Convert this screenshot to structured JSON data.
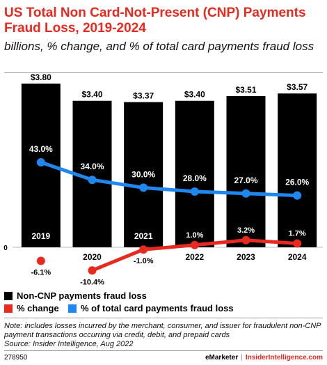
{
  "header": {
    "title": "US Total Non Card-Not-Present (CNP) Payments Fraud Loss, 2019-2024",
    "subtitle": "billions, % change, and % of total card payments fraud loss"
  },
  "chart_data": {
    "type": "bar",
    "categories": [
      "2019",
      "2020",
      "2021",
      "2022",
      "2023",
      "2024"
    ],
    "zero_label": "0",
    "series": [
      {
        "name": "Non-CNP payments fraud loss",
        "type": "bar",
        "color": "#000000",
        "values": [
          3.8,
          3.4,
          3.37,
          3.4,
          3.51,
          3.57
        ],
        "labels": [
          "$3.80",
          "$3.40",
          "$3.37",
          "$3.40",
          "$3.51",
          "$3.57"
        ]
      },
      {
        "name": "% change",
        "type": "line",
        "color": "#e8291f",
        "values": [
          null,
          -10.4,
          -1.0,
          1.0,
          3.2,
          1.7
        ],
        "labels": [
          "-6.1%",
          "-10.4%",
          "-1.0%",
          "1.0%",
          "3.2%",
          "1.7%"
        ]
      },
      {
        "name": "% of total card payments fraud loss",
        "type": "line",
        "color": "#1f88f0",
        "values": [
          43.0,
          34.0,
          30.0,
          28.0,
          27.0,
          26.0
        ],
        "labels": [
          "43.0%",
          "34.0%",
          "30.0%",
          "28.0%",
          "27.0%",
          "26.0%"
        ]
      }
    ],
    "change_2019": -6.1,
    "legend": "bottom"
  },
  "note": "Note: includes losses incurred by the merchant, consumer, and issuer for fraudulent non-CNP payment transactions occurring via credit, debit, and prepaid cards",
  "source": "Source: Insider Intelligence, Aug 2022",
  "footer": {
    "id": "278950",
    "brand": "eMarketer",
    "separator": "|",
    "brand2": "InsiderIntelligence.com"
  }
}
